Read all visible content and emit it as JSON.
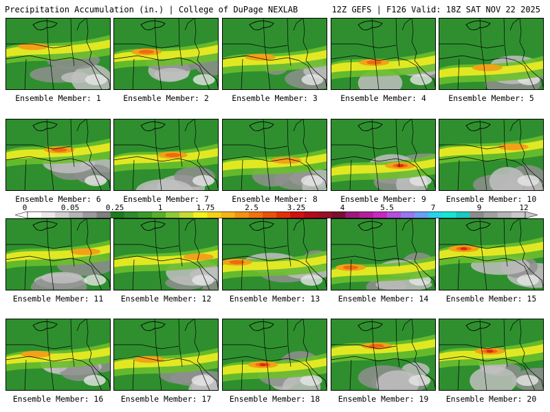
{
  "header": {
    "left": "Precipitation Accumulation (in.) | College of DuPage NEXLAB",
    "right": "12Z GEFS | F126 Valid: 18Z SAT NOV 22 2025"
  },
  "panels": [
    {
      "label": "Ensemble Member: 1",
      "member": 1,
      "max_in": 1.75
    },
    {
      "label": "Ensemble Member: 2",
      "member": 2,
      "max_in": 2.5
    },
    {
      "label": "Ensemble Member: 3",
      "member": 3,
      "max_in": 1.75
    },
    {
      "label": "Ensemble Member: 4",
      "member": 4,
      "max_in": 2.5
    },
    {
      "label": "Ensemble Member: 5",
      "member": 5,
      "max_in": 1.75
    },
    {
      "label": "Ensemble Member: 6",
      "member": 6,
      "max_in": 2.5
    },
    {
      "label": "Ensemble Member: 7",
      "member": 7,
      "max_in": 2.5
    },
    {
      "label": "Ensemble Member: 8",
      "member": 8,
      "max_in": 1.75
    },
    {
      "label": "Ensemble Member: 9",
      "member": 9,
      "max_in": 3.25
    },
    {
      "label": "Ensemble Member: 10",
      "member": 10,
      "max_in": 1.75
    },
    {
      "label": "Ensemble Member: 11",
      "member": 11,
      "max_in": 1.75
    },
    {
      "label": "Ensemble Member: 12",
      "member": 12,
      "max_in": 1.75
    },
    {
      "label": "Ensemble Member: 13",
      "member": 13,
      "max_in": 2.5
    },
    {
      "label": "Ensemble Member: 14",
      "member": 14,
      "max_in": 2.5
    },
    {
      "label": "Ensemble Member: 15",
      "member": 15,
      "max_in": 3.25
    },
    {
      "label": "Ensemble Member: 16",
      "member": 16,
      "max_in": 1.75
    },
    {
      "label": "Ensemble Member: 17",
      "member": 17,
      "max_in": 1.75
    },
    {
      "label": "Ensemble Member: 18",
      "member": 18,
      "max_in": 3.25
    },
    {
      "label": "Ensemble Member: 19",
      "member": 19,
      "max_in": 2.5
    },
    {
      "label": "Ensemble Member: 20",
      "member": 20,
      "max_in": 3.25
    }
  ],
  "colorbar": {
    "ticks": [
      "0",
      "0.05",
      "0.25",
      "1",
      "1.75",
      "2.5",
      "3.25",
      "4",
      "5.5",
      "7",
      "9",
      "12"
    ],
    "colors": [
      "#ffffff",
      "#e8e8e8",
      "#cfcfcf",
      "#b4b4b4",
      "#9a9a9a",
      "#7f7f7f",
      "#1f7a1f",
      "#2e8b2e",
      "#3c9a2c",
      "#58b02a",
      "#8fc93a",
      "#c6dc34",
      "#f2f21e",
      "#f5d21a",
      "#f5b318",
      "#f29214",
      "#ee7212",
      "#e8520f",
      "#e0300c",
      "#d21010",
      "#b40a1a",
      "#961225",
      "#7a1030",
      "#9a1a7a",
      "#b4209a",
      "#c828c0",
      "#b450e0",
      "#9878f0",
      "#6aa0f4",
      "#28d2e8",
      "#14e6d2",
      "#1cc8c0",
      "#8c8c8c",
      "#a0a0a0",
      "#b4b4b4",
      "#c8c8c8"
    ]
  }
}
